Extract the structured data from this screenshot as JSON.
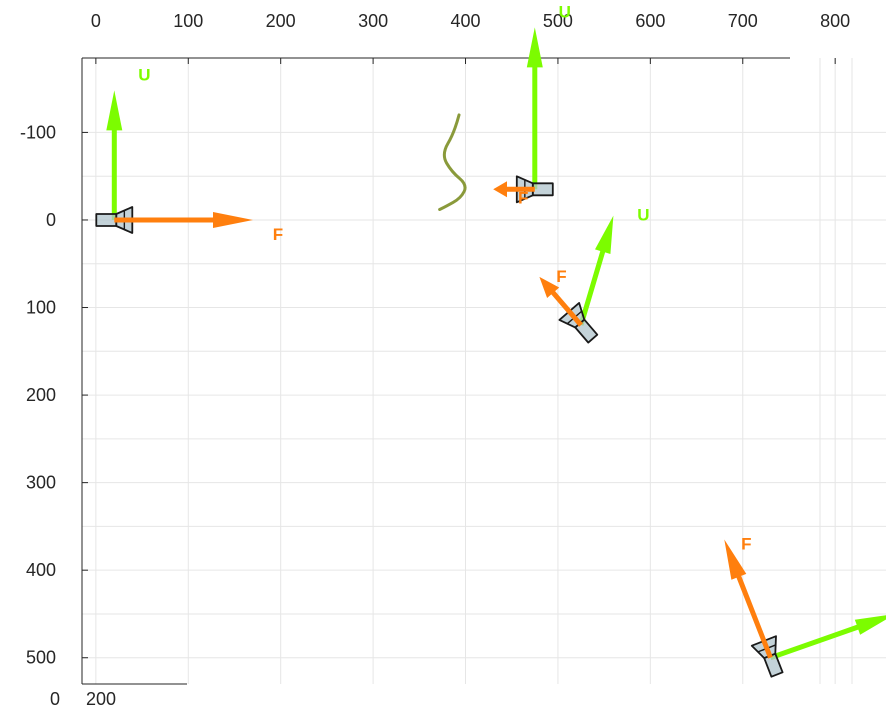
{
  "chart_data": {
    "type": "scatter",
    "title": "",
    "xlabel": "",
    "ylabel": "",
    "xlim": [
      -15,
      855
    ],
    "ylim": [
      -185,
      530
    ],
    "y_reversed": true,
    "grid": true,
    "x_ticks": [
      0,
      100,
      200,
      300,
      400,
      500,
      600,
      700,
      800
    ],
    "y_ticks": [
      -100,
      0,
      100,
      200,
      300,
      400,
      500
    ],
    "x_tick_labels": [
      "0",
      "100",
      "200",
      "300",
      "400",
      "500",
      "600",
      "700",
      "800"
    ],
    "y_tick_labels": [
      "-100",
      "0",
      "100",
      "200",
      "300",
      "400",
      "500"
    ],
    "bottom_tick_labels": [
      "0",
      "200"
    ],
    "colors": {
      "F": "#ff7f0e",
      "U": "#7cfc00",
      "curve": "#8a9a3b",
      "camera_fill": "#b0c4cc",
      "camera_edge": "#1a1a1a"
    },
    "poses": [
      {
        "origin": [
          20,
          0
        ],
        "F": [
          150,
          0
        ],
        "U": [
          0,
          -148
        ],
        "F_label": "F",
        "U_label": "U"
      },
      {
        "origin": [
          475,
          -35
        ],
        "F": [
          -45,
          0
        ],
        "U": [
          0,
          -185
        ],
        "F_label": "F",
        "U_label": "U"
      },
      {
        "origin": [
          525,
          120
        ],
        "F": [
          -45,
          -55
        ],
        "U": [
          35,
          -125
        ],
        "F_label": "F",
        "U_label": "U"
      },
      {
        "origin": [
          730,
          500
        ],
        "F": [
          -50,
          -135
        ],
        "U": [
          135,
          -50
        ],
        "F_label": "F",
        "U_label": "U"
      }
    ],
    "curve": [
      [
        393,
        -120
      ],
      [
        388,
        -100
      ],
      [
        374,
        -75
      ],
      [
        385,
        -55
      ],
      [
        402,
        -40
      ],
      [
        395,
        -25
      ],
      [
        378,
        -15
      ],
      [
        372,
        -12
      ]
    ]
  }
}
